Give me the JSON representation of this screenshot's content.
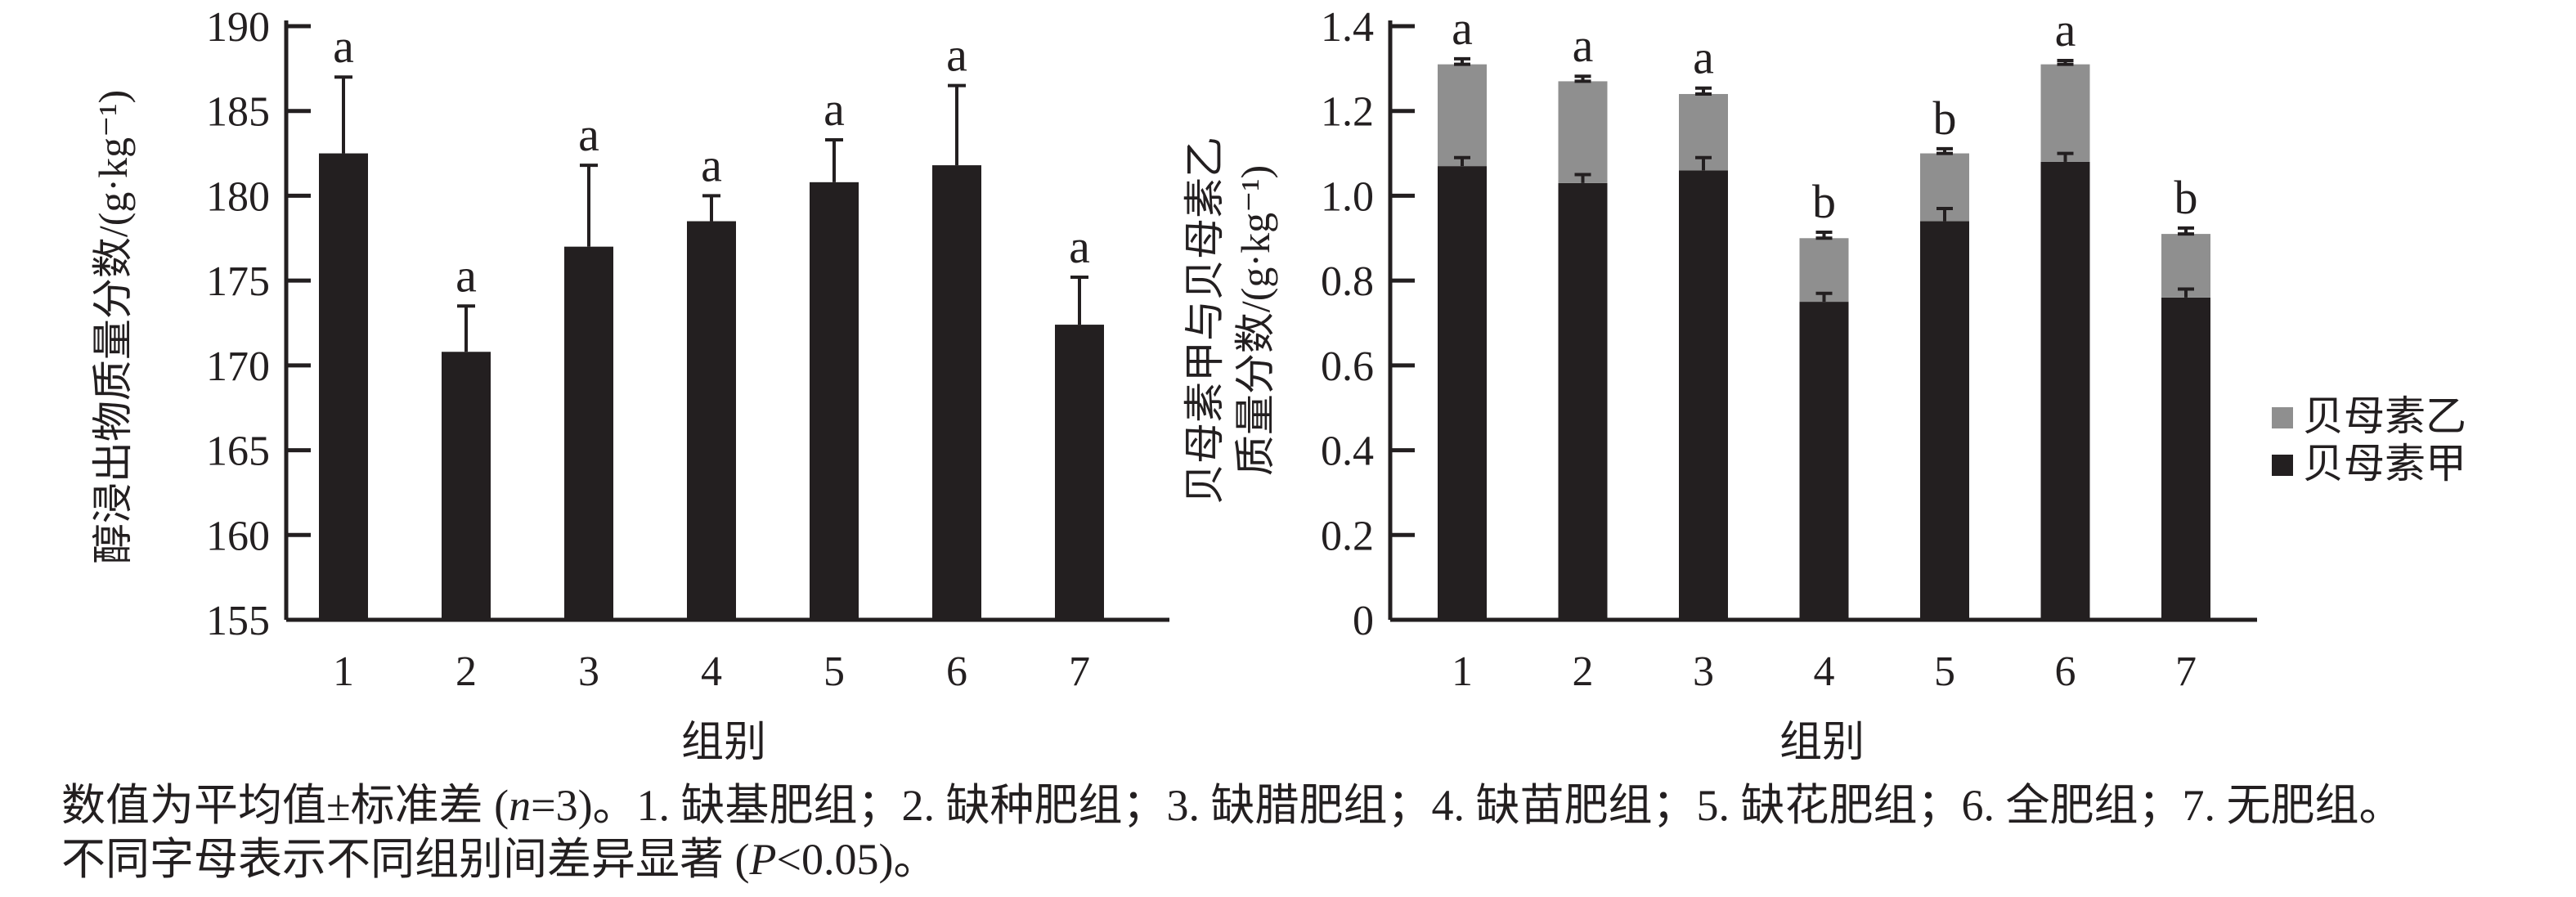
{
  "colors": {
    "bar_black": "#231f20",
    "bar_gray": "#8f8f8f",
    "axis": "#231f20",
    "background": "#ffffff"
  },
  "chart_data": [
    {
      "type": "bar",
      "title": "",
      "xlabel": "组别",
      "ylabel": "醇浸出物质量分数/(g·kg⁻¹)",
      "categories": [
        "1",
        "2",
        "3",
        "4",
        "5",
        "6",
        "7"
      ],
      "values": [
        182.5,
        170.8,
        177.0,
        178.5,
        180.8,
        181.8,
        172.4
      ],
      "errors_up": [
        4.5,
        2.7,
        4.8,
        1.5,
        2.5,
        4.7,
        2.8
      ],
      "sig_letters": [
        "a",
        "a",
        "a",
        "a",
        "a",
        "a",
        "a"
      ],
      "ylim": [
        155,
        190
      ],
      "yticks": [
        "155",
        "160",
        "165",
        "170",
        "175",
        "180",
        "185",
        "190"
      ],
      "grid": false,
      "bar_color": "#231f20",
      "legend_position": "none"
    },
    {
      "type": "stacked-bar",
      "title": "",
      "xlabel": "组别",
      "ylabel_line1": "贝母素甲与贝母素乙",
      "ylabel_line2": "质量分数/(g·kg⁻¹)",
      "categories": [
        "1",
        "2",
        "3",
        "4",
        "5",
        "6",
        "7"
      ],
      "series": [
        {
          "name": "贝母素甲",
          "color": "#231f20",
          "values": [
            1.07,
            1.03,
            1.06,
            0.75,
            0.94,
            1.08,
            0.76
          ],
          "errors_up": [
            0.02,
            0.02,
            0.03,
            0.02,
            0.03,
            0.02,
            0.02
          ]
        },
        {
          "name": "贝母素乙",
          "color": "#8f8f8f",
          "values": [
            0.24,
            0.24,
            0.18,
            0.15,
            0.16,
            0.23,
            0.15
          ]
        }
      ],
      "totals": [
        1.31,
        1.27,
        1.24,
        0.9,
        1.1,
        1.31,
        0.91
      ],
      "total_errors_up": [
        0.013,
        0.012,
        0.014,
        0.014,
        0.011,
        0.009,
        0.014
      ],
      "sig_letters": [
        "a",
        "a",
        "a",
        "b",
        "b",
        "a",
        "b"
      ],
      "ylim": [
        0,
        1.4
      ],
      "yticks": [
        "0",
        "0.2",
        "0.4",
        "0.6",
        "0.8",
        "1.0",
        "1.2",
        "1.4"
      ],
      "grid": false,
      "legend_position": "right",
      "legend": [
        {
          "label": "贝母素乙",
          "color": "#8f8f8f"
        },
        {
          "label": "贝母素甲",
          "color": "#231f20"
        }
      ]
    }
  ],
  "caption": {
    "line1_pre": "数值为平均值±标准差 (",
    "line1_var": "n",
    "line1_post": "=3)。1. 缺基肥组；2. 缺种肥组；3. 缺腊肥组；4. 缺苗肥组；5. 缺花肥组；6. 全肥组；7. 无肥组。",
    "line2_pre": "不同字母表示不同组别间差异显著 (",
    "line2_var": "P",
    "line2_post": "<0.05)。"
  }
}
